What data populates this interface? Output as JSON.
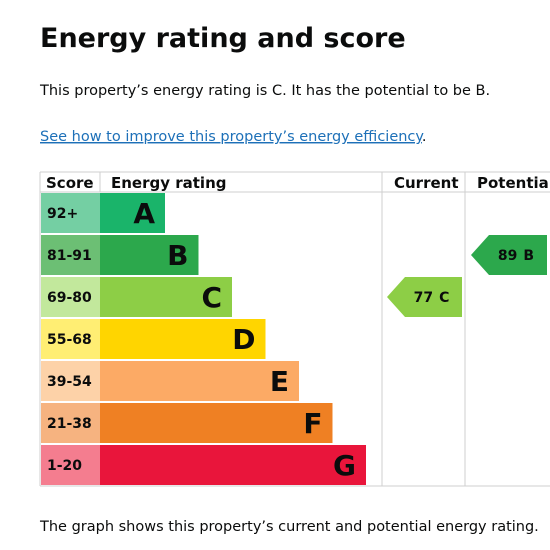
{
  "heading": "Energy rating and score",
  "summary": "This property’s energy rating is C. It has the potential to be B.",
  "link": {
    "text": "See how to improve this property’s energy efficiency",
    "end": "."
  },
  "table": {
    "headers": [
      "Score",
      "Energy rating",
      "Current",
      "Potential"
    ],
    "bands": [
      {
        "score": "92+",
        "rating": "A",
        "color": "#1ab46a",
        "score_color": "#74cfa3"
      },
      {
        "score": "81-91",
        "rating": "B",
        "color": "#2ca84c",
        "score_color": "#6cbf74"
      },
      {
        "score": "69-80",
        "rating": "C",
        "color": "#8dce46",
        "score_color": "#c2e89c"
      },
      {
        "score": "55-68",
        "rating": "D",
        "color": "#ffd500",
        "score_color": "#ffee73"
      },
      {
        "score": "39-54",
        "rating": "E",
        "color": "#fcaa65",
        "score_color": "#fdd2a8"
      },
      {
        "score": "21-38",
        "rating": "F",
        "color": "#ef8023",
        "score_color": "#f6b380"
      },
      {
        "score": "1-20",
        "rating": "G",
        "color": "#e9153b",
        "score_color": "#f47d8f"
      }
    ],
    "current": {
      "score": 77,
      "rating": "C"
    },
    "potential": {
      "score": 89,
      "rating": "B"
    }
  },
  "footer": "The graph shows this property’s current and potential energy rating."
}
